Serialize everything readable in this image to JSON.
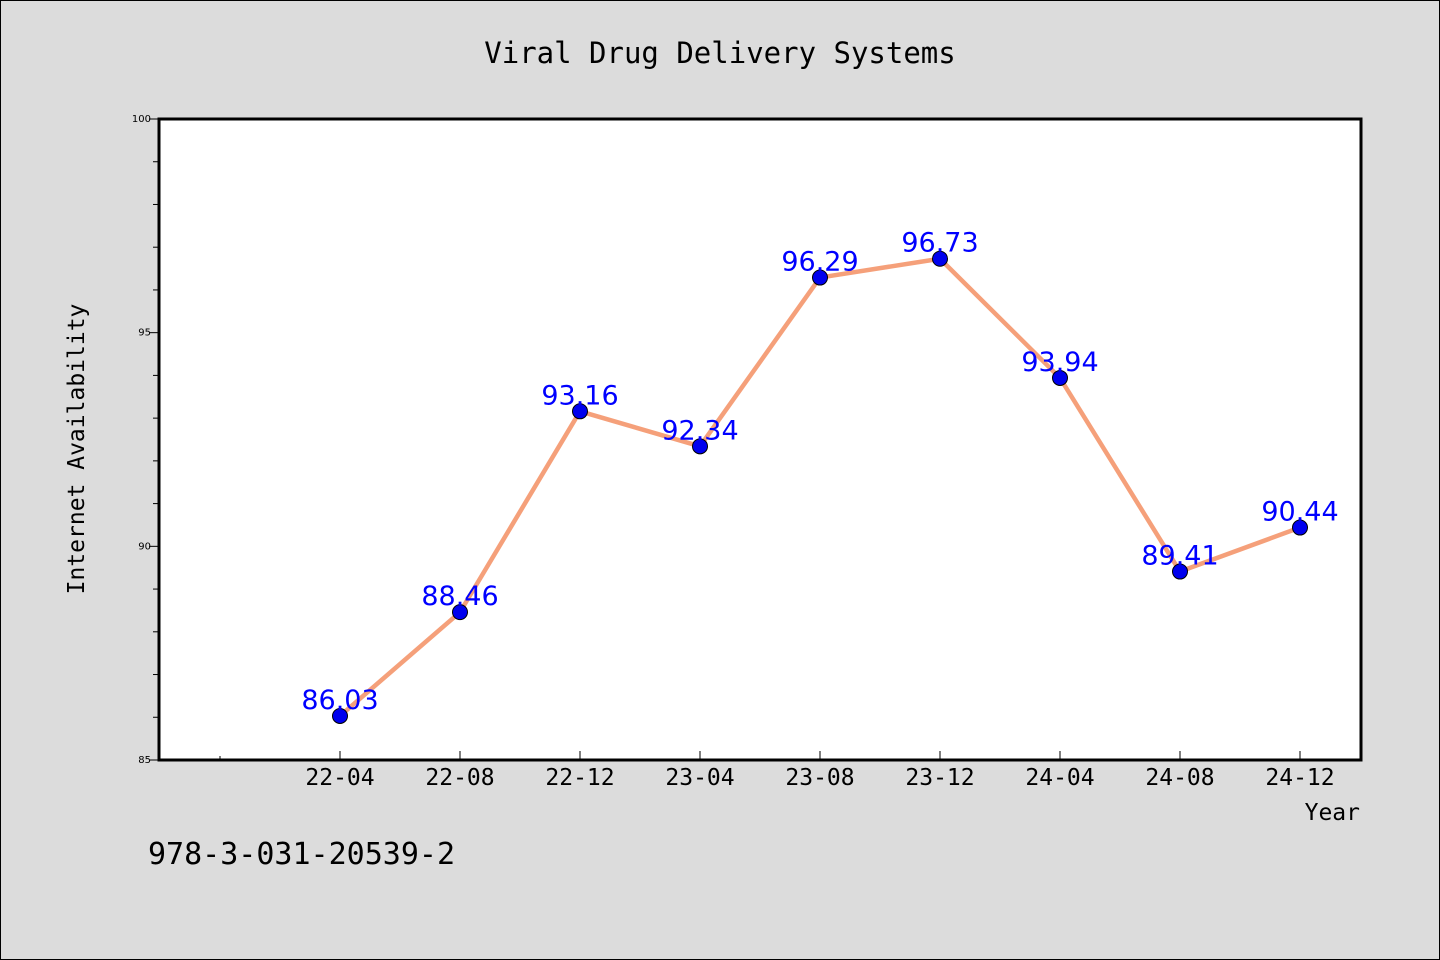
{
  "chart_data": {
    "type": "line",
    "title": "Viral Drug Delivery Systems",
    "xlabel": "Year",
    "ylabel": "Internet Availability",
    "categories": [
      "22-04",
      "22-08",
      "22-12",
      "23-04",
      "23-08",
      "23-12",
      "24-04",
      "24-08",
      "24-12"
    ],
    "series": [
      {
        "values": [
          86.03,
          88.46,
          93.16,
          92.34,
          96.29,
          96.73,
          93.94,
          89.41,
          90.44
        ],
        "labels": [
          "86.03",
          "88.46",
          "93.16",
          "92.34",
          "96.29",
          "96.73",
          "93.94",
          "89.41",
          "90.44"
        ],
        "line_color": "#f5a07a",
        "marker_color": "#0000ee",
        "label_color": "#0000ff"
      }
    ],
    "ylim": [
      85,
      100
    ],
    "yticks": [
      85,
      90,
      95,
      100
    ],
    "ytick_labels": [
      "85",
      "90",
      "95",
      "100"
    ],
    "grid": false,
    "legend": "none"
  },
  "annotation": "978-3-031-20539-2",
  "colors": {
    "background": "#dcdcdc",
    "plot_area": "#ffffff",
    "axes": "#000000"
  }
}
